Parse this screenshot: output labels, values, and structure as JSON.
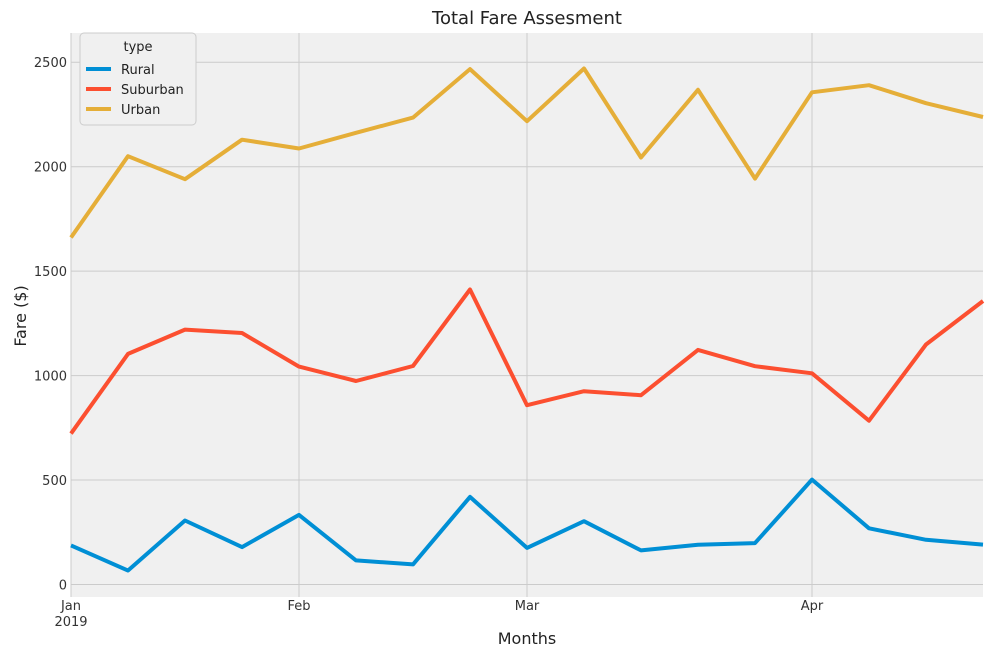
{
  "chart_data": {
    "type": "line",
    "title": "Total Fare Assesment",
    "xlabel": "Months",
    "ylabel": "Fare ($)",
    "ylim": [
      -60,
      2640
    ],
    "yticks": [
      0,
      500,
      1000,
      1500,
      2000,
      2500
    ],
    "x": [
      "2019-01-06",
      "2019-01-13",
      "2019-01-20",
      "2019-01-27",
      "2019-02-03",
      "2019-02-10",
      "2019-02-17",
      "2019-02-24",
      "2019-03-03",
      "2019-03-10",
      "2019-03-17",
      "2019-03-24",
      "2019-03-31",
      "2019-04-07",
      "2019-04-14",
      "2019-04-21",
      "2019-04-28"
    ],
    "xticks": [
      {
        "label": "Jan",
        "sublabel": "2019",
        "pos": 0
      },
      {
        "label": "Feb",
        "pos": 4
      },
      {
        "label": "Mar",
        "pos": 8
      },
      {
        "label": "Apr",
        "pos": 13
      }
    ],
    "legend": {
      "title": "type",
      "position": "upper-left"
    },
    "series": [
      {
        "name": "Rural",
        "color": "#008fd5",
        "values": [
          187,
          67,
          306,
          179,
          333,
          115,
          96,
          419,
          175,
          303,
          163,
          190,
          198,
          502,
          269,
          214,
          191
        ]
      },
      {
        "name": "Suburban",
        "color": "#fc4f30",
        "values": [
          722,
          1104,
          1220,
          1204,
          1043,
          974,
          1046,
          1412,
          858,
          925,
          906,
          1123,
          1045,
          1011,
          784,
          1149,
          1357
        ]
      },
      {
        "name": "Urban",
        "color": "#e5ae38",
        "values": [
          1661,
          2050,
          1940,
          2129,
          2087,
          2162,
          2235,
          2467,
          2218,
          2470,
          2044,
          2368,
          1943,
          2356,
          2390,
          2304,
          2238
        ]
      }
    ]
  }
}
